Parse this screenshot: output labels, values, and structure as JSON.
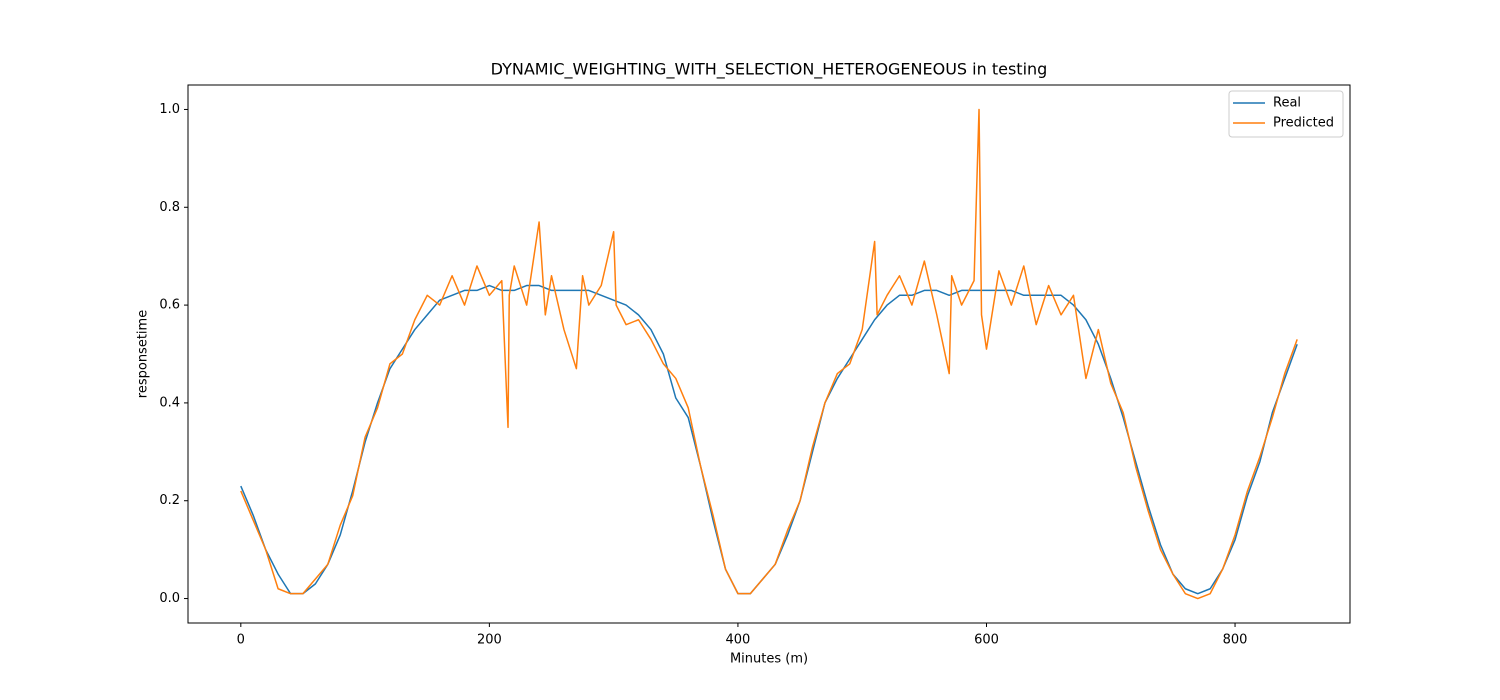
{
  "chart_data": {
    "type": "line",
    "title": "DYNAMIC_WEIGHTING_WITH_SELECTION_HETEROGENEOUS in testing",
    "x_label": "Minutes (m)",
    "y_label": "responsetime",
    "xlim": [
      -42.5,
      892.5
    ],
    "xticks": [
      0,
      200,
      400,
      600,
      800
    ],
    "ylim": [
      -0.05,
      1.05
    ],
    "yticks": [
      {
        "value": 0,
        "label": "0.0"
      },
      0.2,
      0.4,
      0.6,
      0.8,
      {
        "value": 1,
        "label": "1.0"
      }
    ],
    "legend": "upper right",
    "series": [
      {
        "name": "Real",
        "color": "#1f77b4",
        "x": [
          0,
          10,
          20,
          30,
          40,
          50,
          60,
          70,
          80,
          90,
          100,
          110,
          120,
          130,
          140,
          150,
          160,
          170,
          180,
          190,
          200,
          210,
          220,
          230,
          240,
          250,
          260,
          270,
          280,
          290,
          300,
          310,
          320,
          330,
          340,
          350,
          360,
          370,
          380,
          390,
          400,
          410,
          420,
          430,
          440,
          450,
          460,
          470,
          480,
          490,
          500,
          510,
          520,
          530,
          540,
          550,
          560,
          570,
          580,
          590,
          600,
          610,
          620,
          630,
          640,
          650,
          660,
          670,
          680,
          690,
          700,
          710,
          720,
          730,
          740,
          750,
          760,
          770,
          780,
          790,
          800,
          810,
          820,
          830,
          840,
          850
        ],
        "values": [
          0.23,
          0.17,
          0.1,
          0.05,
          0.01,
          0.01,
          0.03,
          0.07,
          0.13,
          0.22,
          0.32,
          0.4,
          0.47,
          0.51,
          0.55,
          0.58,
          0.61,
          0.62,
          0.63,
          0.63,
          0.64,
          0.63,
          0.63,
          0.64,
          0.64,
          0.63,
          0.63,
          0.63,
          0.63,
          0.62,
          0.61,
          0.6,
          0.58,
          0.55,
          0.5,
          0.41,
          0.37,
          0.27,
          0.16,
          0.06,
          0.01,
          0.01,
          0.04,
          0.07,
          0.13,
          0.2,
          0.3,
          0.4,
          0.45,
          0.49,
          0.53,
          0.57,
          0.6,
          0.62,
          0.62,
          0.63,
          0.63,
          0.62,
          0.63,
          0.63,
          0.63,
          0.63,
          0.63,
          0.62,
          0.62,
          0.62,
          0.62,
          0.6,
          0.57,
          0.52,
          0.45,
          0.37,
          0.28,
          0.19,
          0.11,
          0.05,
          0.02,
          0.01,
          0.02,
          0.06,
          0.12,
          0.21,
          0.28,
          0.38,
          0.45,
          0.52
        ]
      },
      {
        "name": "Predicted",
        "color": "#ff7f0e",
        "x": [
          0,
          10,
          20,
          30,
          40,
          50,
          60,
          70,
          80,
          90,
          100,
          110,
          120,
          130,
          140,
          150,
          160,
          170,
          180,
          190,
          200,
          210,
          215,
          216,
          220,
          230,
          240,
          245,
          250,
          260,
          270,
          275,
          280,
          290,
          300,
          302,
          310,
          320,
          330,
          340,
          350,
          360,
          370,
          380,
          390,
          400,
          410,
          420,
          430,
          440,
          450,
          460,
          470,
          480,
          490,
          500,
          510,
          512,
          520,
          530,
          540,
          550,
          560,
          570,
          572,
          580,
          590,
          592,
          594,
          596,
          600,
          610,
          620,
          630,
          640,
          650,
          660,
          670,
          680,
          690,
          700,
          710,
          720,
          730,
          740,
          750,
          760,
          770,
          780,
          790,
          800,
          810,
          820,
          830,
          840,
          850
        ],
        "values": [
          0.22,
          0.16,
          0.1,
          0.02,
          0.01,
          0.01,
          0.04,
          0.07,
          0.15,
          0.21,
          0.33,
          0.39,
          0.48,
          0.5,
          0.57,
          0.62,
          0.6,
          0.66,
          0.6,
          0.68,
          0.62,
          0.65,
          0.35,
          0.62,
          0.68,
          0.6,
          0.77,
          0.58,
          0.66,
          0.55,
          0.47,
          0.66,
          0.6,
          0.64,
          0.75,
          0.6,
          0.56,
          0.57,
          0.53,
          0.48,
          0.45,
          0.39,
          0.27,
          0.17,
          0.06,
          0.01,
          0.01,
          0.04,
          0.07,
          0.14,
          0.2,
          0.31,
          0.4,
          0.46,
          0.48,
          0.55,
          0.73,
          0.58,
          0.62,
          0.66,
          0.6,
          0.69,
          0.58,
          0.46,
          0.66,
          0.6,
          0.65,
          0.83,
          1.0,
          0.58,
          0.51,
          0.67,
          0.6,
          0.68,
          0.56,
          0.64,
          0.58,
          0.62,
          0.45,
          0.55,
          0.44,
          0.38,
          0.27,
          0.18,
          0.1,
          0.05,
          0.01,
          0.0,
          0.01,
          0.06,
          0.13,
          0.22,
          0.29,
          0.37,
          0.46,
          0.53
        ]
      }
    ]
  }
}
